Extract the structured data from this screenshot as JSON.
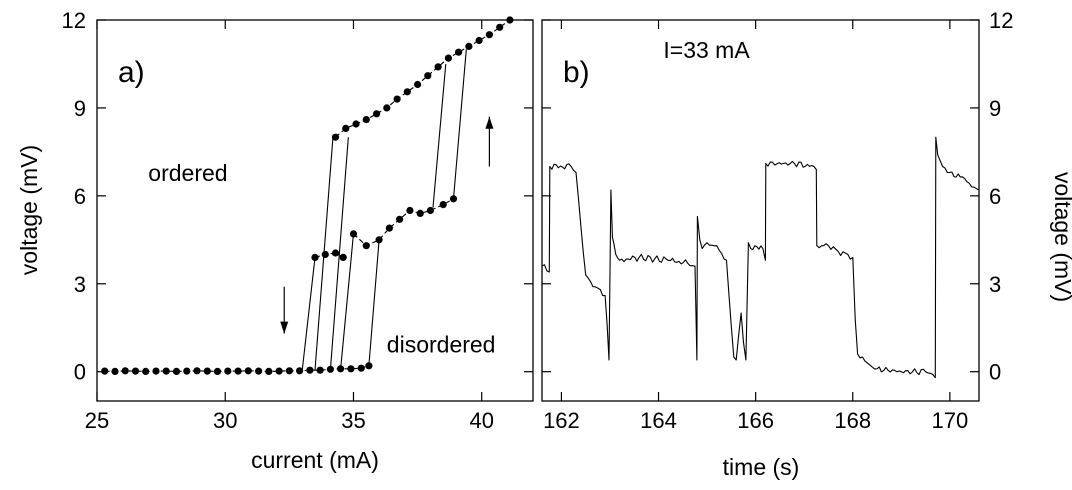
{
  "chart_data": [
    {
      "type": "line",
      "panel_label": "a)",
      "xlabel": "current (mA)",
      "ylabel": "voltage (mV)",
      "xlim": [
        25,
        42
      ],
      "ylim": [
        -1,
        12
      ],
      "x_ticks": [
        25,
        30,
        35,
        40
      ],
      "y_ticks": [
        0,
        3,
        6,
        9,
        12
      ],
      "annotations": [
        {
          "text": "ordered",
          "x": 27.0,
          "y": 6.5
        },
        {
          "text": "disordered",
          "x": 36.3,
          "y": 0.65
        }
      ],
      "arrows": [
        {
          "direction": "down",
          "x": 32.3,
          "y_from": 2.9,
          "y_to": 1.3
        },
        {
          "direction": "up",
          "x": 40.3,
          "y_from": 7.0,
          "y_to": 8.7
        }
      ],
      "series": [
        {
          "marker": "circle",
          "style": "dashed",
          "x": [
            25.3,
            25.7,
            26.1,
            26.5,
            26.9,
            27.3,
            27.7,
            28.1,
            28.5,
            28.9,
            29.3,
            29.7,
            30.1,
            30.5,
            30.9,
            31.3,
            31.7,
            32.1,
            32.5,
            32.9,
            33.3,
            33.7,
            34.1,
            34.5,
            34.9,
            35.3,
            35.6
          ],
          "y": [
            0.02,
            0.01,
            0.03,
            0.02,
            0.01,
            0.02,
            0.02,
            0.01,
            0.02,
            0.03,
            0.02,
            0.01,
            0.02,
            0.02,
            0.03,
            0.02,
            0.01,
            0.02,
            0.03,
            0.03,
            0.05,
            0.05,
            0.08,
            0.1,
            0.1,
            0.12,
            0.2
          ]
        },
        {
          "marker": "circle",
          "style": "dashed",
          "x": [
            33.5,
            33.9,
            34.3,
            34.6
          ],
          "y": [
            3.9,
            4.0,
            4.05,
            3.9
          ]
        },
        {
          "marker": "circle",
          "style": "dashed",
          "x": [
            35.0,
            35.5,
            36.0,
            36.4,
            36.8,
            37.2,
            37.6,
            38.0,
            38.5,
            38.9
          ],
          "y": [
            4.7,
            4.3,
            4.5,
            4.9,
            5.2,
            5.5,
            5.4,
            5.5,
            5.7,
            5.9
          ]
        },
        {
          "marker": "circle",
          "style": "dashed",
          "x": [
            34.3,
            34.7,
            35.1,
            35.5,
            35.9,
            36.3,
            36.7,
            37.1,
            37.5,
            37.9,
            38.3,
            38.7,
            39.1,
            39.5,
            39.9,
            40.3,
            40.7,
            41.1
          ],
          "y": [
            8.0,
            8.3,
            8.45,
            8.6,
            8.8,
            9.0,
            9.3,
            9.55,
            9.8,
            10.1,
            10.4,
            10.7,
            10.9,
            11.1,
            11.3,
            11.5,
            11.75,
            12.0
          ]
        }
      ],
      "transitions": [
        {
          "x": [
            33.0,
            33.5
          ],
          "y": [
            0.03,
            3.9
          ]
        },
        {
          "x": [
            33.5,
            34.2
          ],
          "y": [
            0.05,
            8.0
          ]
        },
        {
          "x": [
            34.1,
            34.8
          ],
          "y": [
            0.06,
            8.0
          ]
        },
        {
          "x": [
            34.5,
            35.0
          ],
          "y": [
            0.1,
            4.7
          ]
        },
        {
          "x": [
            35.6,
            36.0
          ],
          "y": [
            0.2,
            4.5
          ]
        },
        {
          "x": [
            38.1,
            38.6
          ],
          "y": [
            5.6,
            10.5
          ]
        },
        {
          "x": [
            38.9,
            39.4
          ],
          "y": [
            5.9,
            11.0
          ]
        }
      ]
    },
    {
      "type": "line",
      "panel_label": "b)",
      "xlabel": "time (s)",
      "ylabel": "voltage (mV)",
      "xlim": [
        161.6,
        170.6
      ],
      "ylim": [
        -1,
        12
      ],
      "x_ticks": [
        162,
        164,
        166,
        168,
        170
      ],
      "y_ticks": [
        0,
        3,
        6,
        9,
        12
      ],
      "annotations": [
        {
          "text": "I=33 mA",
          "x": 164.1,
          "y": 10.7
        }
      ],
      "series": [
        {
          "style": "solid",
          "x": [
            161.6,
            161.75,
            161.76,
            162.2,
            162.3,
            162.4,
            162.5,
            162.65,
            162.8,
            162.9,
            162.98,
            163.02,
            163.05,
            163.12,
            163.2,
            163.6,
            164.2,
            164.6,
            164.75,
            164.79,
            164.8,
            164.85,
            164.9,
            165.0,
            165.2,
            165.4,
            165.5,
            165.55,
            165.6,
            165.7,
            165.75,
            165.8,
            165.85,
            165.9,
            166.15,
            166.2,
            166.21,
            166.8,
            167.2,
            167.25,
            167.26,
            167.5,
            167.7,
            167.9,
            168.0,
            168.05,
            168.1,
            168.2,
            168.3,
            168.5,
            169.0,
            169.5,
            169.65,
            169.7,
            169.71,
            169.75,
            169.85,
            170.0,
            170.3,
            170.5,
            170.6
          ],
          "y": [
            3.6,
            3.4,
            7.0,
            7.0,
            6.8,
            5.0,
            3.3,
            2.9,
            2.8,
            2.6,
            0.4,
            6.2,
            4.6,
            4.0,
            3.8,
            3.9,
            3.8,
            3.7,
            3.6,
            0.4,
            5.3,
            4.5,
            4.2,
            4.4,
            4.3,
            3.8,
            1.5,
            0.5,
            0.4,
            2.0,
            1.0,
            0.4,
            4.4,
            4.2,
            4.2,
            3.8,
            7.1,
            7.1,
            7.0,
            6.9,
            4.3,
            4.3,
            4.1,
            4.0,
            3.9,
            1.8,
            0.6,
            0.5,
            0.3,
            0.1,
            0.0,
            0.0,
            -0.1,
            -0.2,
            8.0,
            7.4,
            7.0,
            6.8,
            6.6,
            6.3,
            6.2
          ]
        }
      ]
    }
  ]
}
